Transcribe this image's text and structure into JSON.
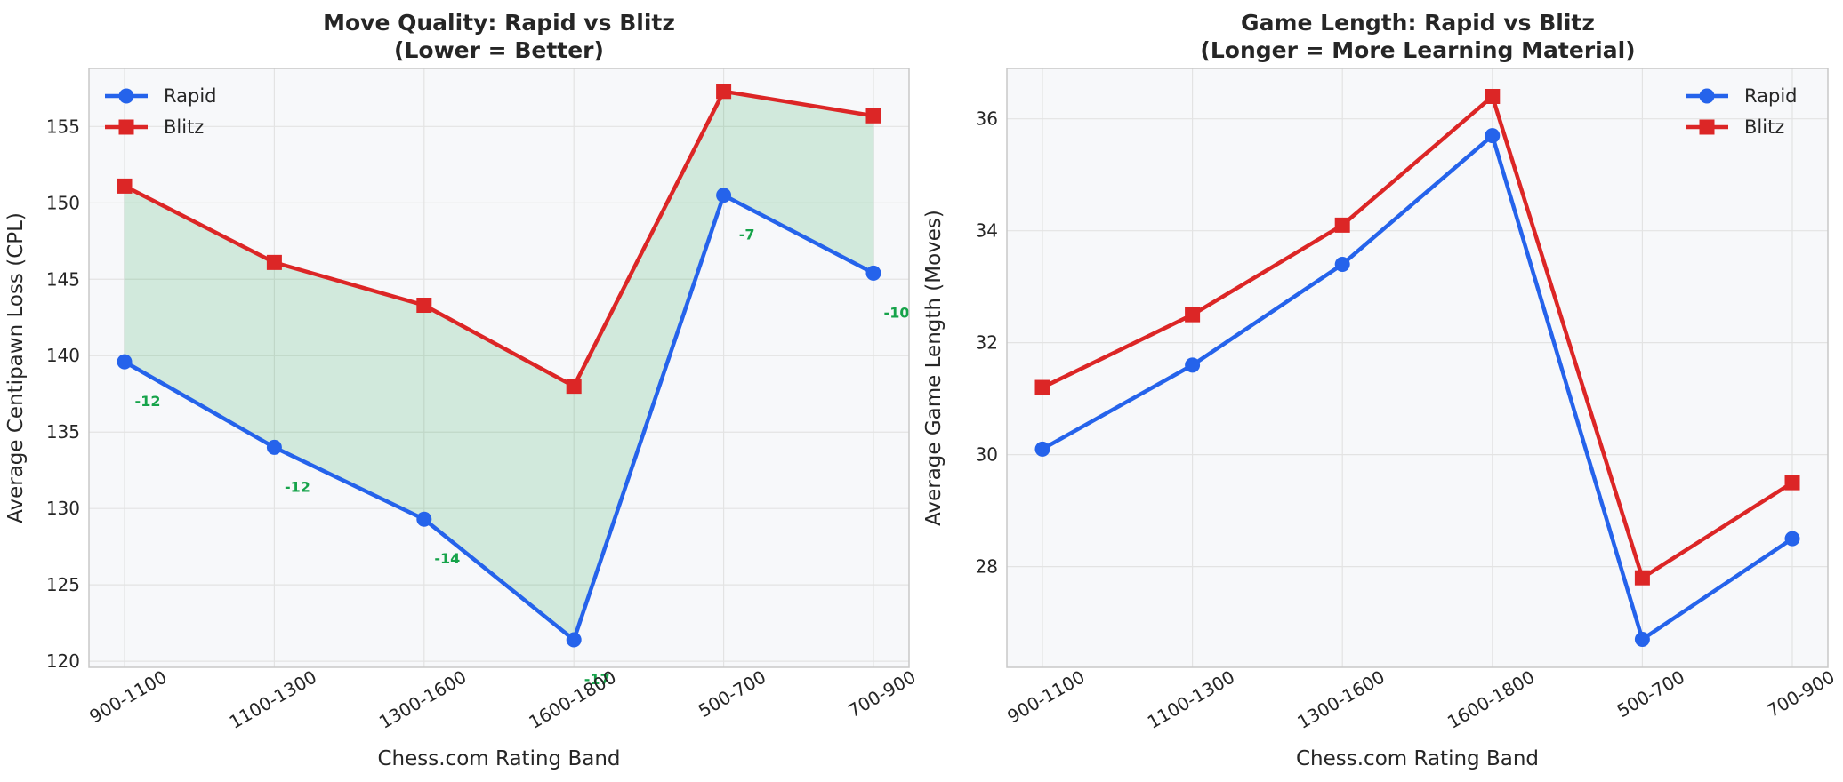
{
  "colors": {
    "rapid": "#2563eb",
    "blitz": "#dc2626",
    "fill": "#16a34a",
    "annotation": "#16a34a",
    "plot_bg": "#f7f8fa",
    "grid": "#e3e3e3"
  },
  "chart_data": [
    {
      "type": "line",
      "title": "Move Quality: Rapid vs Blitz\n(Lower = Better)",
      "xlabel": "Chess.com Rating Band",
      "ylabel": "Average Centipawn Loss (CPL)",
      "categories": [
        "900-1100",
        "1100-1300",
        "1300-1600",
        "1600-1800",
        "500-700",
        "700-900"
      ],
      "ylim": [
        119.6,
        158.8
      ],
      "yticks": [
        120,
        125,
        130,
        135,
        140,
        145,
        150,
        155
      ],
      "grid": true,
      "legend": "upper left",
      "fill_between": true,
      "series": [
        {
          "name": "Rapid",
          "marker": "circle",
          "values": [
            139.6,
            134.0,
            129.3,
            121.4,
            150.5,
            145.4
          ]
        },
        {
          "name": "Blitz",
          "marker": "square",
          "values": [
            151.1,
            146.1,
            143.3,
            138.0,
            157.3,
            155.7
          ]
        }
      ],
      "annotations": [
        "-12",
        "-12",
        "-14",
        "-17",
        "-7",
        "-10"
      ]
    },
    {
      "type": "line",
      "title": "Game Length: Rapid vs Blitz\n(Longer = More Learning Material)",
      "xlabel": "Chess.com Rating Band",
      "ylabel": "Average Game Length (Moves)",
      "categories": [
        "900-1100",
        "1100-1300",
        "1300-1600",
        "1600-1800",
        "500-700",
        "700-900"
      ],
      "ylim": [
        26.2,
        36.9
      ],
      "yticks": [
        28,
        30,
        32,
        34,
        36
      ],
      "grid": true,
      "legend": "upper right",
      "series": [
        {
          "name": "Rapid",
          "marker": "circle",
          "values": [
            30.1,
            31.6,
            33.4,
            35.7,
            26.7,
            28.5
          ]
        },
        {
          "name": "Blitz",
          "marker": "square",
          "values": [
            31.2,
            32.5,
            34.1,
            36.4,
            27.8,
            29.5
          ]
        }
      ]
    }
  ]
}
